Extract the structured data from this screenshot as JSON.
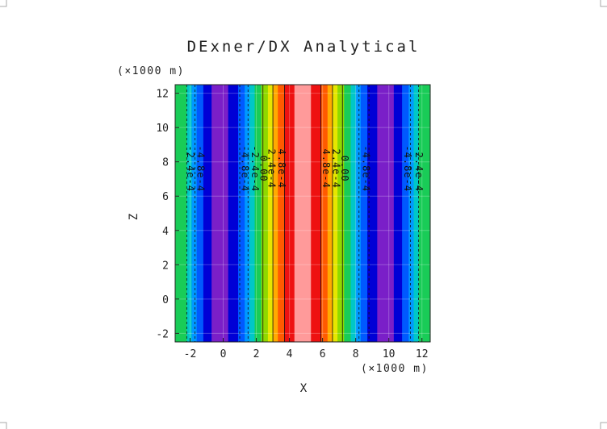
{
  "chart_data": {
    "type": "heatmap",
    "title": "DExner/DX Analytical",
    "xlabel": "X",
    "ylabel": "Z",
    "x_unit": "(×1000 m)",
    "y_unit": "(×1000 m)",
    "xlim": [
      -2.9,
      12.5
    ],
    "ylim": [
      -2.5,
      12.5
    ],
    "xticks": [
      -2,
      0,
      2,
      4,
      6,
      8,
      10,
      12
    ],
    "yticks": [
      -2,
      0,
      2,
      4,
      6,
      8,
      10,
      12
    ],
    "bands": [
      {
        "x0": -2.9,
        "x1": -2.2,
        "color": "#19cc57"
      },
      {
        "x0": -2.2,
        "x1": -1.9,
        "color": "#00c7c7"
      },
      {
        "x0": -1.9,
        "x1": -1.6,
        "color": "#0099ff"
      },
      {
        "x0": -1.6,
        "x1": -1.2,
        "color": "#0059ff"
      },
      {
        "x0": -1.2,
        "x1": -0.7,
        "color": "#0000d6"
      },
      {
        "x0": -0.7,
        "x1": 0.3,
        "color": "#7a1fc8"
      },
      {
        "x0": 0.3,
        "x1": 0.9,
        "color": "#0000d6"
      },
      {
        "x0": 0.9,
        "x1": 1.3,
        "color": "#0059ff"
      },
      {
        "x0": 1.3,
        "x1": 1.6,
        "color": "#0099ff"
      },
      {
        "x0": 1.6,
        "x1": 1.9,
        "color": "#00c7c7"
      },
      {
        "x0": 1.9,
        "x1": 2.3,
        "color": "#19cc57"
      },
      {
        "x0": 2.3,
        "x1": 2.7,
        "color": "#8fd800"
      },
      {
        "x0": 2.7,
        "x1": 3.0,
        "color": "#e6e600"
      },
      {
        "x0": 3.0,
        "x1": 3.3,
        "color": "#ffaa00"
      },
      {
        "x0": 3.3,
        "x1": 3.7,
        "color": "#ff5a00"
      },
      {
        "x0": 3.7,
        "x1": 4.3,
        "color": "#ee1111"
      },
      {
        "x0": 4.3,
        "x1": 5.3,
        "color": "#ff9a9a"
      },
      {
        "x0": 5.3,
        "x1": 5.9,
        "color": "#ee1111"
      },
      {
        "x0": 5.9,
        "x1": 6.3,
        "color": "#ff5a00"
      },
      {
        "x0": 6.3,
        "x1": 6.6,
        "color": "#ffaa00"
      },
      {
        "x0": 6.6,
        "x1": 6.9,
        "color": "#e6e600"
      },
      {
        "x0": 6.9,
        "x1": 7.3,
        "color": "#8fd800"
      },
      {
        "x0": 7.3,
        "x1": 7.7,
        "color": "#19cc57"
      },
      {
        "x0": 7.7,
        "x1": 8.0,
        "color": "#00c7c7"
      },
      {
        "x0": 8.0,
        "x1": 8.3,
        "color": "#0099ff"
      },
      {
        "x0": 8.3,
        "x1": 8.7,
        "color": "#0059ff"
      },
      {
        "x0": 8.7,
        "x1": 9.3,
        "color": "#0000d6"
      },
      {
        "x0": 9.3,
        "x1": 10.3,
        "color": "#7a1fc8"
      },
      {
        "x0": 10.3,
        "x1": 10.8,
        "color": "#0000d6"
      },
      {
        "x0": 10.8,
        "x1": 11.2,
        "color": "#0059ff"
      },
      {
        "x0": 11.2,
        "x1": 11.5,
        "color": "#0099ff"
      },
      {
        "x0": 11.5,
        "x1": 11.8,
        "color": "#00c7c7"
      },
      {
        "x0": 11.8,
        "x1": 12.5,
        "color": "#19cc57"
      }
    ],
    "contour_lines": [
      {
        "x": -2.2,
        "dashed": true
      },
      {
        "x": -1.7,
        "dashed": true
      },
      {
        "x": 1.0,
        "dashed": true
      },
      {
        "x": 1.5,
        "dashed": true
      },
      {
        "x": 2.4,
        "dashed": false
      },
      {
        "x": 3.0,
        "dashed": false
      },
      {
        "x": 3.7,
        "dashed": false
      },
      {
        "x": 5.9,
        "dashed": false
      },
      {
        "x": 6.6,
        "dashed": false
      },
      {
        "x": 7.2,
        "dashed": false
      },
      {
        "x": 8.2,
        "dashed": true
      },
      {
        "x": 8.8,
        "dashed": true
      },
      {
        "x": 11.3,
        "dashed": true
      },
      {
        "x": 11.8,
        "dashed": true
      }
    ],
    "contour_labels": [
      {
        "x": -2.0,
        "z": 7.6,
        "text": "-2.4e-4"
      },
      {
        "x": -1.4,
        "z": 7.6,
        "text": "-4.8e-4"
      },
      {
        "x": 1.3,
        "z": 7.6,
        "text": "-4.8e-4"
      },
      {
        "x": 1.9,
        "z": 7.6,
        "text": "-2.4e-4"
      },
      {
        "x": 2.4,
        "z": 7.6,
        "text": "0.00"
      },
      {
        "x": 2.9,
        "z": 7.6,
        "text": "2.4e-4"
      },
      {
        "x": 3.5,
        "z": 7.6,
        "text": "4.8e-4"
      },
      {
        "x": 6.2,
        "z": 7.6,
        "text": "4.8e-4"
      },
      {
        "x": 6.8,
        "z": 7.6,
        "text": "2.4e-4"
      },
      {
        "x": 7.3,
        "z": 7.6,
        "text": "0.00"
      },
      {
        "x": 8.6,
        "z": 7.6,
        "text": "-4.8e-4"
      },
      {
        "x": 11.1,
        "z": 7.6,
        "text": "-4.8e-4"
      },
      {
        "x": 11.8,
        "z": 7.6,
        "text": "-2.4e-4"
      }
    ]
  }
}
